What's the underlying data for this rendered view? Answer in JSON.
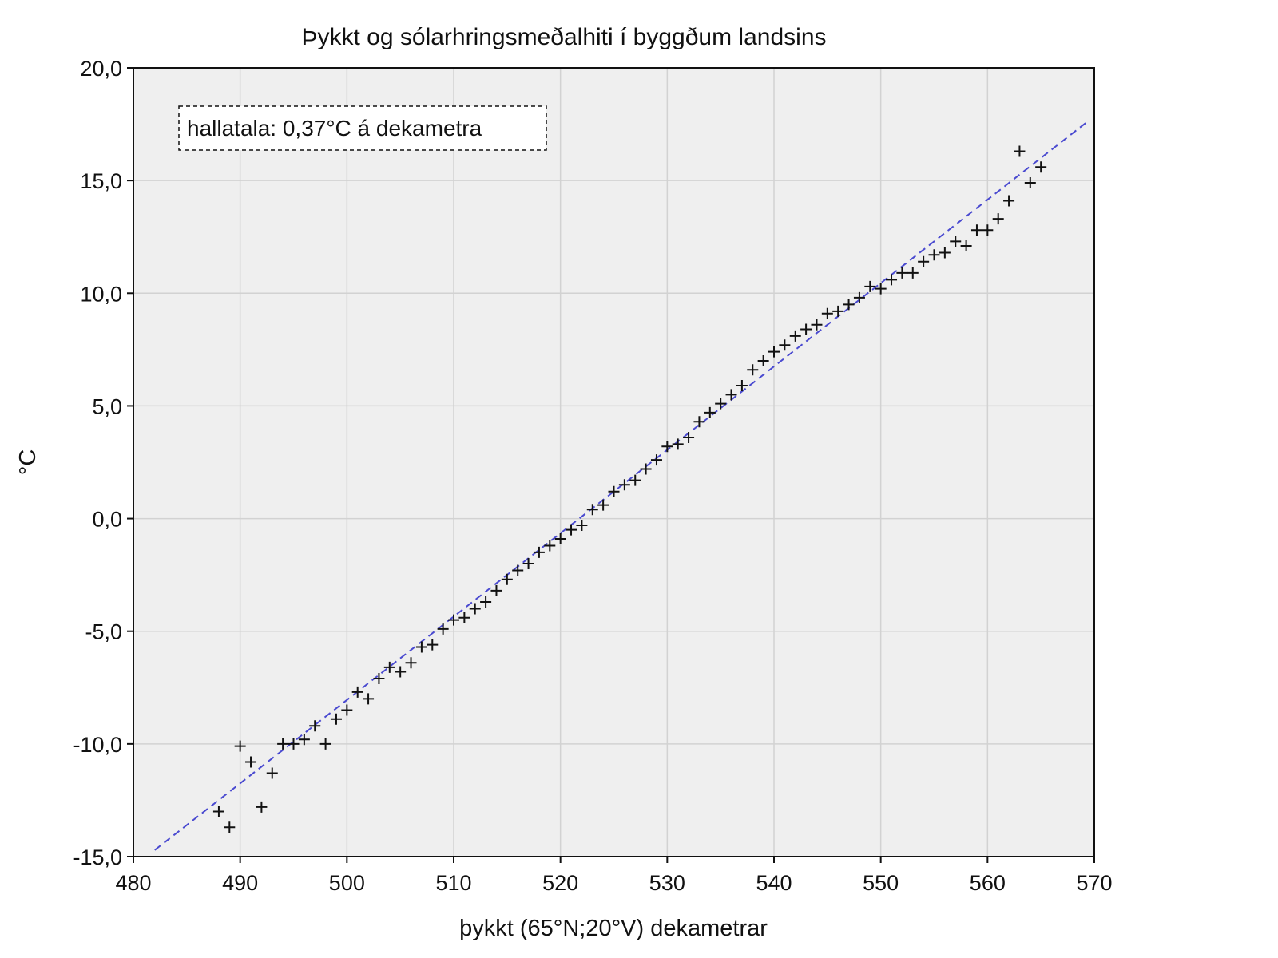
{
  "chart_data": {
    "type": "scatter",
    "title": "Þykkt og sólarhringsmeðalhiti í byggðum landsins",
    "xlabel": "þykkt (65°N;20°V) dekametrar",
    "ylabel": "°C",
    "xlim": [
      480,
      570
    ],
    "ylim": [
      -15,
      20
    ],
    "x_ticks": [
      "480",
      "490",
      "500",
      "510",
      "520",
      "530",
      "540",
      "550",
      "560",
      "570"
    ],
    "y_ticks": [
      "20,0",
      "15,0",
      "10,0",
      "5,0",
      "0,0",
      "-5,0",
      "-10,0",
      "-15,0"
    ],
    "grid": true,
    "marker": "+",
    "annotation": "hallatala: 0,37°C á dekametra",
    "trendline": {
      "style": "dashed",
      "color": "#4a4ad0",
      "slope": 0.37,
      "intercept": -193.05
    },
    "x": [
      488,
      489,
      490,
      491,
      492,
      493,
      494,
      495,
      496,
      497,
      498,
      499,
      500,
      501,
      502,
      503,
      504,
      505,
      506,
      507,
      508,
      509,
      510,
      511,
      512,
      513,
      514,
      515,
      516,
      517,
      518,
      519,
      520,
      521,
      522,
      523,
      524,
      525,
      526,
      527,
      528,
      529,
      530,
      531,
      532,
      533,
      534,
      535,
      536,
      537,
      538,
      539,
      540,
      541,
      542,
      543,
      544,
      545,
      546,
      547,
      548,
      549,
      550,
      551,
      552,
      553,
      554,
      555,
      556,
      557,
      558,
      559,
      560,
      561,
      562,
      563,
      564,
      565
    ],
    "y": [
      -13.0,
      -13.7,
      -10.1,
      -10.8,
      -12.8,
      -11.3,
      -10.0,
      -10.0,
      -9.8,
      -9.2,
      -10.0,
      -8.9,
      -8.5,
      -7.7,
      -8.0,
      -7.1,
      -6.6,
      -6.8,
      -6.4,
      -5.7,
      -5.6,
      -4.9,
      -4.5,
      -4.4,
      -4.0,
      -3.7,
      -3.2,
      -2.7,
      -2.3,
      -2.0,
      -1.5,
      -1.2,
      -0.9,
      -0.5,
      -0.3,
      0.4,
      0.6,
      1.2,
      1.5,
      1.7,
      2.2,
      2.6,
      3.2,
      3.3,
      3.6,
      4.3,
      4.7,
      5.1,
      5.5,
      5.9,
      6.6,
      7.0,
      7.4,
      7.7,
      8.1,
      8.4,
      8.6,
      9.1,
      9.2,
      9.5,
      9.8,
      10.3,
      10.2,
      10.6,
      10.9,
      10.9,
      11.4,
      11.7,
      11.8,
      12.3,
      12.1,
      12.8,
      12.8,
      13.3,
      14.1,
      16.3,
      14.9,
      15.6
    ]
  },
  "colors": {
    "plot_background": "#efefef",
    "grid": "#d2d2d2",
    "trendline": "#4a4ad0",
    "marker": "#111111"
  }
}
